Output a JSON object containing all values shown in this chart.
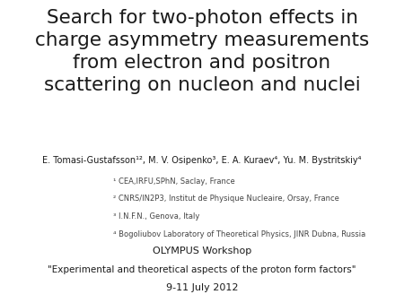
{
  "title_lines": [
    "Search for two-photon effects in",
    "charge asymmetry measurements",
    "from electron and positron",
    "scattering on nucleon and nuclei"
  ],
  "authors_line": "E. Tomasi-Gustafsson¹², M. V. Osipenko³, E. A. Kuraev⁴, Yu. M. Bystritskiy⁴",
  "affiliations": [
    "¹ CEA,IRFU,SPhN, Saclay, France",
    "² CNRS/IN2P3, Institut de Physique Nucleaire, Orsay, France",
    "³ I.N.F.N., Genova, Italy",
    "⁴ Bogoliubov Laboratory of Theoretical Physics, JINR Dubna, Russia"
  ],
  "workshop_line1": "OLYMPUS Workshop",
  "workshop_line2": "\"Experimental and theoretical aspects of the proton form factors\"",
  "workshop_line3": "9-11 July 2012",
  "bg_color": "#ffffff",
  "text_color": "#1a1a1a",
  "affil_color": "#444444",
  "title_fontsize": 15.5,
  "authors_fontsize": 7.0,
  "affiliations_fontsize": 6.0,
  "workshop_fontsize": 8.0
}
